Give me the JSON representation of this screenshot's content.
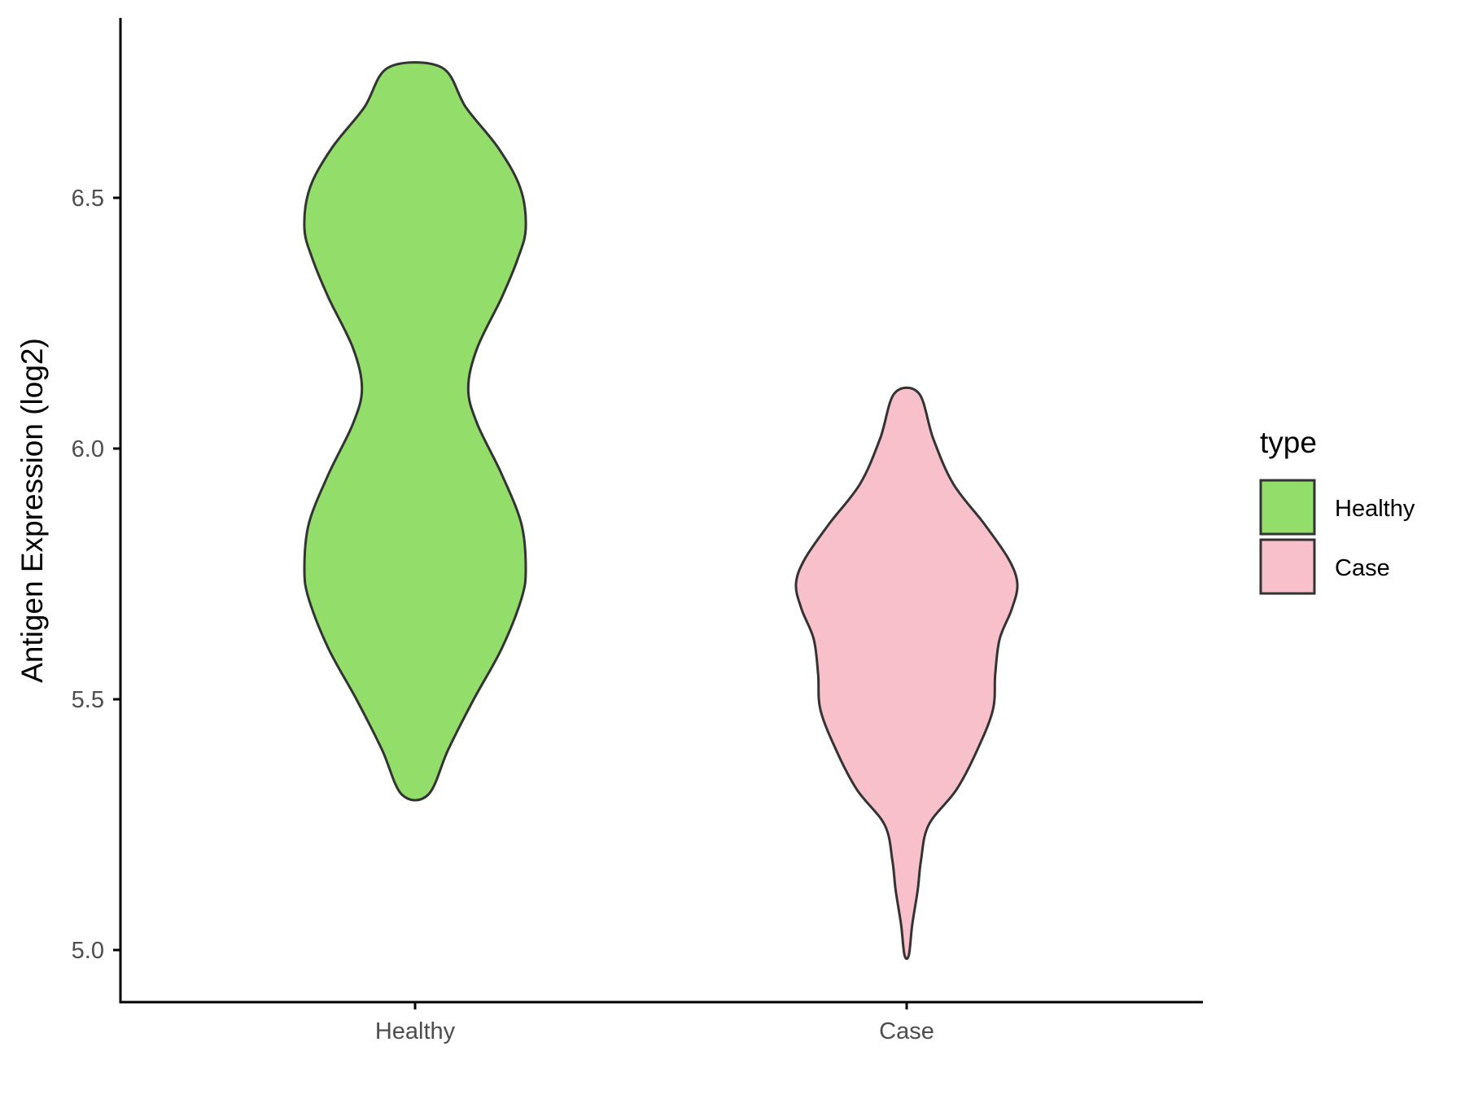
{
  "chart_data": {
    "type": "violin",
    "title": "",
    "xlabel": "",
    "ylabel": "Antigen Expression (log2)",
    "categories": [
      "Healthy",
      "Case"
    ],
    "yticks": [
      "5.0",
      "5.5",
      "6.0",
      "6.5"
    ],
    "ylim": [
      4.9,
      6.85
    ],
    "grid": false,
    "legend": {
      "title": "type",
      "position": "right",
      "entries": [
        {
          "label": "Healthy",
          "color": "#93dd6b"
        },
        {
          "label": "Case",
          "color": "#f8c0cb"
        }
      ]
    },
    "series": [
      {
        "category": "Healthy",
        "color": "#93dd6b",
        "min": 5.31,
        "max": 6.76,
        "profile": [
          [
            5.31,
            0.12
          ],
          [
            5.4,
            0.3
          ],
          [
            5.5,
            0.53
          ],
          [
            5.6,
            0.78
          ],
          [
            5.7,
            0.96
          ],
          [
            5.76,
            1.0
          ],
          [
            5.85,
            0.96
          ],
          [
            5.95,
            0.78
          ],
          [
            6.05,
            0.56
          ],
          [
            6.12,
            0.48
          ],
          [
            6.2,
            0.56
          ],
          [
            6.3,
            0.78
          ],
          [
            6.38,
            0.93
          ],
          [
            6.44,
            1.0
          ],
          [
            6.52,
            0.95
          ],
          [
            6.6,
            0.75
          ],
          [
            6.68,
            0.46
          ],
          [
            6.76,
            0.24
          ]
        ]
      },
      {
        "category": "Case",
        "color": "#f8c0cb",
        "min": 4.99,
        "max": 6.11,
        "profile": [
          [
            4.99,
            0.02
          ],
          [
            5.05,
            0.05
          ],
          [
            5.12,
            0.1
          ],
          [
            5.18,
            0.13
          ],
          [
            5.25,
            0.2
          ],
          [
            5.32,
            0.45
          ],
          [
            5.4,
            0.64
          ],
          [
            5.48,
            0.78
          ],
          [
            5.55,
            0.8
          ],
          [
            5.62,
            0.84
          ],
          [
            5.68,
            0.95
          ],
          [
            5.73,
            1.0
          ],
          [
            5.78,
            0.92
          ],
          [
            5.85,
            0.7
          ],
          [
            5.93,
            0.42
          ],
          [
            6.02,
            0.24
          ],
          [
            6.11,
            0.11
          ]
        ]
      }
    ]
  }
}
